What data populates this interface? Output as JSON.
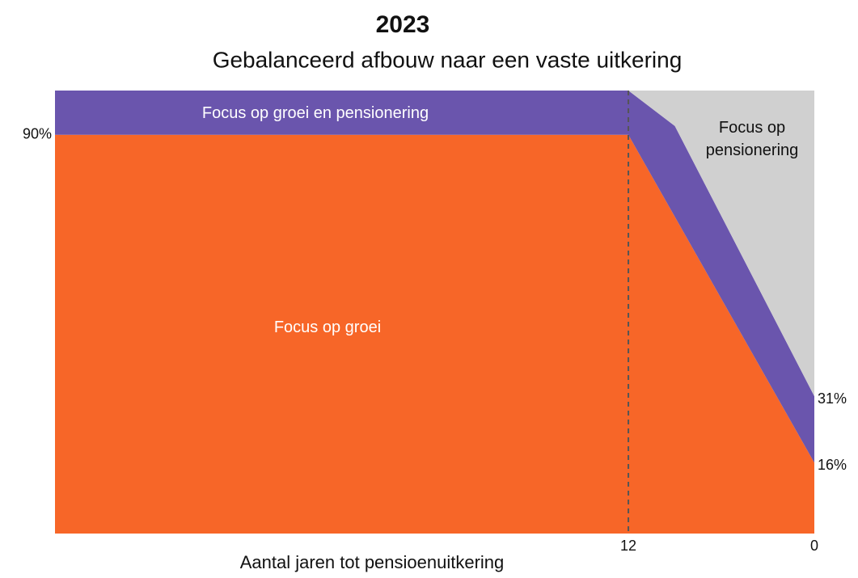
{
  "chart_data": {
    "type": "stacked_area",
    "title": "2023",
    "subtitle": "Gebalanceerd afbouw naar een vaste uitkering",
    "xlabel": "Aantal jaren tot pensioenuitkering",
    "x": [
      49,
      12,
      9,
      0
    ],
    "series": [
      {
        "name": "Focus op groei",
        "color": "#f76628",
        "values": [
          90,
          90,
          71.5,
          16
        ]
      },
      {
        "name": "Focus op groei en pensionering",
        "color": "#6a55ad",
        "values": [
          10,
          10,
          20.5,
          15
        ]
      },
      {
        "name": "Focus op pensionering",
        "color": "#d0d0d0",
        "values": [
          0,
          0,
          8,
          69
        ]
      }
    ],
    "xlim": [
      49,
      0
    ],
    "xticks": [
      12,
      0
    ],
    "ylim": [
      0,
      100
    ],
    "yticks": [
      {
        "value": 90,
        "label": "90%"
      }
    ],
    "y2lim": [
      0,
      100
    ],
    "y2ticks": [
      {
        "value": 31,
        "label": "31%"
      },
      {
        "value": 16,
        "label": "16%"
      }
    ]
  }
}
